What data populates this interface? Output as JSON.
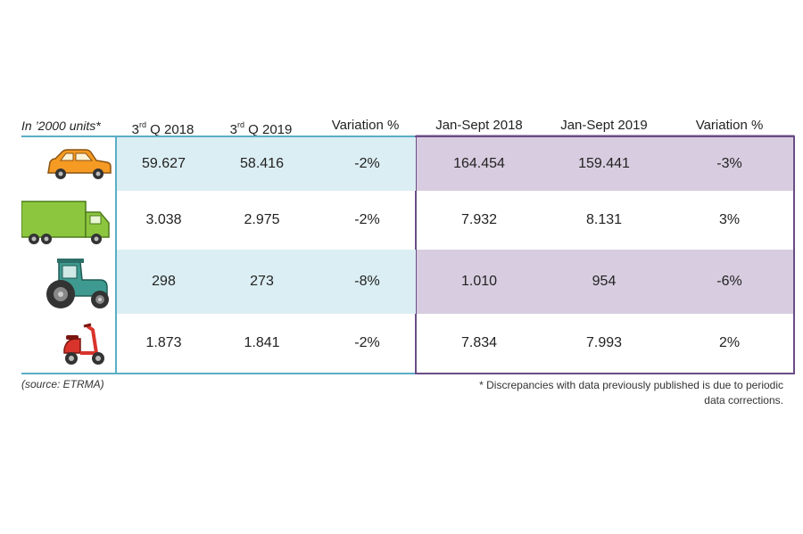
{
  "chart_data": {
    "type": "table",
    "units_label": "In ’2000 units*",
    "columns": [
      {
        "base": "3",
        "sup": "rd",
        "rest": " Q 2018"
      },
      {
        "base": "3",
        "sup": "rd",
        "rest": " Q 2019"
      },
      {
        "base": "Variation %",
        "sup": "",
        "rest": ""
      },
      {
        "base": "Jan-Sept 2018",
        "sup": "",
        "rest": ""
      },
      {
        "base": "Jan-Sept 2019",
        "sup": "",
        "rest": ""
      },
      {
        "base": "Variation %",
        "sup": "",
        "rest": ""
      }
    ],
    "rows": [
      {
        "icon": "car-icon",
        "values": [
          "59.627",
          "58.416",
          "-2%",
          "164.454",
          "159.441",
          "-3%"
        ]
      },
      {
        "icon": "truck-icon",
        "values": [
          "3.038",
          "2.975",
          "-2%",
          "7.932",
          "8.131",
          "3%"
        ]
      },
      {
        "icon": "tractor-icon",
        "values": [
          "298",
          "273",
          "-8%",
          "1.010",
          "954",
          "-6%"
        ]
      },
      {
        "icon": "scooter-icon",
        "values": [
          "1.873",
          "1.841",
          "-2%",
          "7.834",
          "7.993",
          "2%"
        ]
      }
    ],
    "source": "(source: ETRMA)",
    "footnote_line1": "* Discrepancies with data previously published is due to periodic",
    "footnote_line2": "data corrections."
  },
  "colors": {
    "light_blue_band": "#dbeef3",
    "purple_band": "#d8cde0",
    "purple_frame": "#6a4c86",
    "blue_rule": "#5aaec4",
    "car": "#f59a23",
    "truck": "#8cc63f",
    "tractor": "#3e9a90",
    "scooter": "#d9342b"
  }
}
